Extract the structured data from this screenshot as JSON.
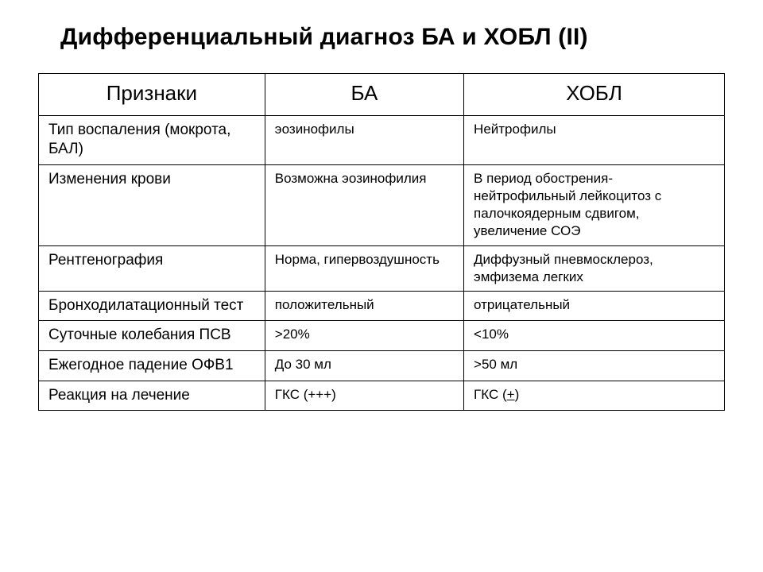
{
  "title": "Дифференциальный диагноз БА и ХОБЛ (II)",
  "table": {
    "type": "table",
    "border_color": "#000000",
    "background_color": "#ffffff",
    "header_fontsize": 26,
    "rowlabel_fontsize": 19,
    "cell_fontsize": 17,
    "col_widths_pct": [
      33,
      29,
      38
    ],
    "columns": [
      "Признаки",
      "БА",
      "ХОБЛ"
    ],
    "rows": [
      {
        "label": "Тип воспаления (мокрота, БАЛ)",
        "ba": "эозинофилы",
        "copd": "Нейтрофилы"
      },
      {
        "label": "Изменения крови",
        "ba": "Возможна эозинофилия",
        "copd": "В период обострения- нейтрофильный  лейкоцитоз с палочкоядерным сдвигом, увеличение СОЭ",
        "tall": true
      },
      {
        "label": "Рентгенография",
        "ba": "Норма, гипервоздушность",
        "copd": "Диффузный пневмосклероз, эмфизема легких"
      },
      {
        "label": "Бронходилатационный тест",
        "ba": "положительный",
        "copd": "отрицательный"
      },
      {
        "label": "Суточные колебания ПСВ",
        "ba": ">20%",
        "copd": "<10%"
      },
      {
        "label": "Ежегодное падение ОФВ1",
        "ba": "До 30 мл",
        "copd": ">50 мл"
      },
      {
        "label": "Реакция на лечение",
        "ba": "ГКС (+++)",
        "copd": "ГКС (+)",
        "copd_underline_plus": true
      }
    ]
  }
}
